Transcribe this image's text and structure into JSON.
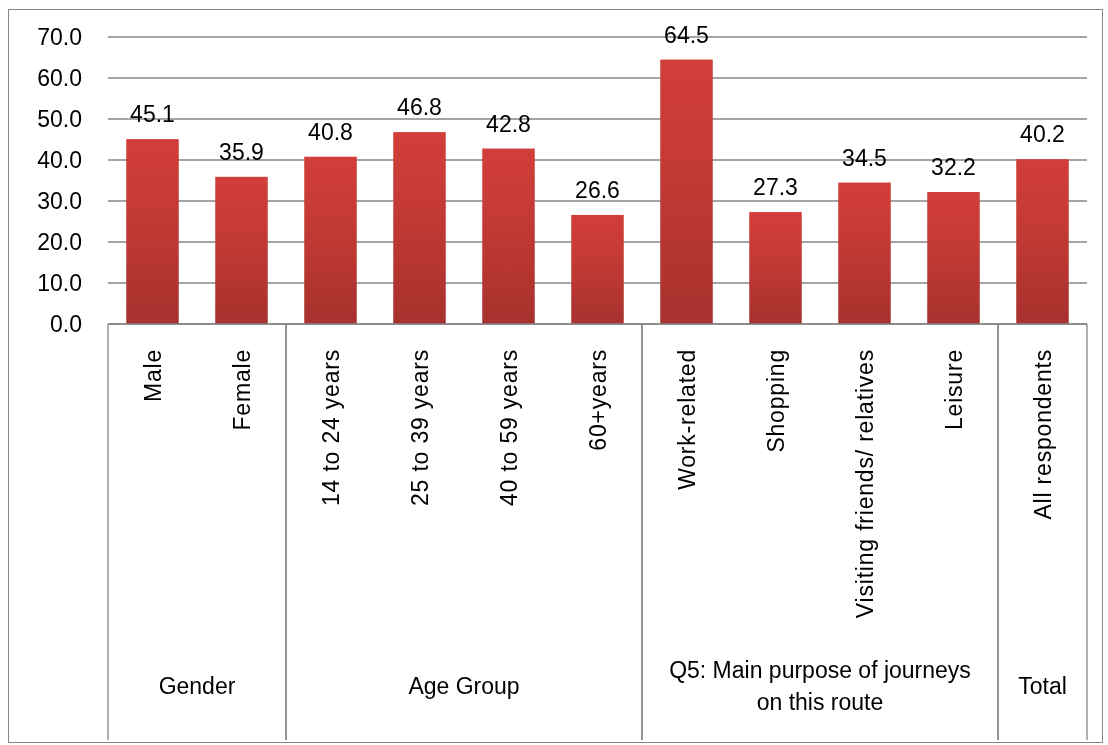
{
  "chart_data": [
    {
      "type": "bar",
      "categories": [
        "Male",
        "Female"
      ],
      "values": [
        45.1,
        35.9
      ],
      "color": "#c43a35",
      "xlabel": "Gender",
      "ylim": [
        0,
        70
      ],
      "yticks": [
        {
          "value": 0,
          "label": "0.0"
        },
        {
          "value": 10,
          "label": "10.0"
        },
        {
          "value": 20,
          "label": "20.0"
        },
        {
          "value": 30,
          "label": "30.0"
        },
        {
          "value": 40,
          "label": "40.0"
        },
        {
          "value": 50,
          "label": "50.0"
        },
        {
          "value": 60,
          "label": "60.0"
        },
        {
          "value": 70,
          "label": "70.0"
        }
      ],
      "grid": "y",
      "data_labels": true
    },
    {
      "type": "bar",
      "categories": [
        "14 to 24 years",
        "25 to 39 years",
        "40 to 59 years",
        "60+years"
      ],
      "values": [
        40.8,
        46.8,
        42.8,
        26.6
      ],
      "color": "#c43a35",
      "xlabel": "Age Group",
      "ylim": [
        0,
        70
      ],
      "yticks": [
        0,
        10,
        20,
        30,
        40,
        50,
        60,
        70
      ],
      "grid": "y",
      "data_labels": true,
      "tick_labels": "x"
    },
    {
      "type": "bar",
      "categories": [
        "Work-related",
        "Shopping",
        "Visiting friends/ relatives",
        "Leisure"
      ],
      "values": [
        64.5,
        27.3,
        34.5,
        32.2
      ],
      "color": "#c43a35",
      "xlabel": "Q5: Main purpose of journeys on this route",
      "ylim": [
        0,
        70
      ],
      "yticks": [
        0,
        10,
        20,
        30,
        40,
        50,
        60,
        70
      ],
      "grid": "y",
      "data_labels": true,
      "tick_labels": "x"
    },
    {
      "type": "bar",
      "categories": [
        "All respondents"
      ],
      "values": [
        40.2
      ],
      "color": "#c43a35",
      "xlabel": "Total",
      "ylim": [
        0,
        70
      ],
      "yticks": [
        0,
        10,
        20,
        30,
        40,
        50,
        60,
        70
      ],
      "grid": "y",
      "data_labels": true,
      "tick_labels": "x"
    }
  ]
}
